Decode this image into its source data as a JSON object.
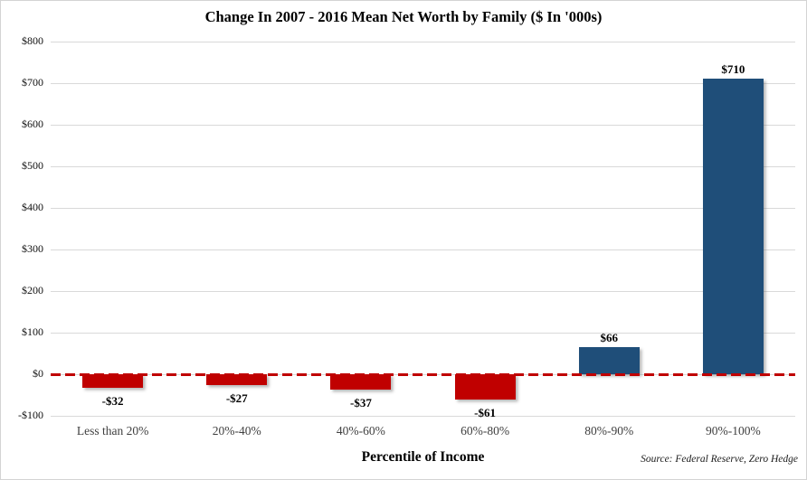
{
  "source": "Source: Federal Reserve, Zero Hedge",
  "chart_data": {
    "type": "bar",
    "title": "Change In 2007 - 2016 Mean Net Worth by Family ($ In '000s)",
    "categories": [
      "Less than 20%",
      "20%-40%",
      "40%-60%",
      "60%-80%",
      "80%-90%",
      "90%-100%"
    ],
    "values": [
      -32,
      -27,
      -37,
      -61,
      66,
      710
    ],
    "value_labels": [
      "-$32",
      "-$27",
      "-$37",
      "-$61",
      "$66",
      "$710"
    ],
    "xlabel": "Percentile of Income",
    "ylabel": "",
    "ylim": [
      -100,
      800
    ],
    "yticks": [
      800,
      700,
      600,
      500,
      400,
      300,
      200,
      100,
      0,
      -100
    ],
    "ytick_labels": [
      "$800",
      "$700",
      "$600",
      "$500",
      "$400",
      "$300",
      "$200",
      "$100",
      "$0",
      "-$100"
    ],
    "grid": true,
    "legend": false,
    "zero_line": {
      "style": "dashed",
      "color": "#C00000"
    },
    "colors": {
      "positive_bar": "#1F4E79",
      "negative_bar": "#C00000",
      "gridline": "#D9D9D9"
    }
  }
}
